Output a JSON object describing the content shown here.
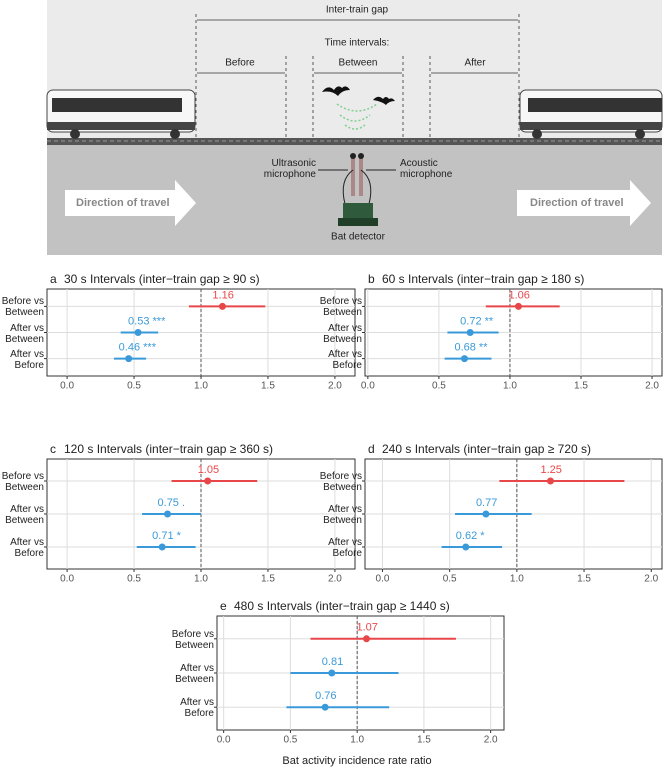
{
  "diagram": {
    "gap_label": "Inter-train gap",
    "intervals_label": "Time intervals:",
    "before": "Before",
    "between": "Between",
    "after": "After",
    "ultrasonic": "Ultrasonic microphone",
    "acoustic": "Acoustic microphone",
    "detector": "Bat detector",
    "direction_left": "Direction of travel",
    "direction_right": "Direction of travel"
  },
  "x_label": "Bat activity incidence rate ratio",
  "chart_data": [
    {
      "type": "forest",
      "panel": "a",
      "title": "30 s Intervals (inter−train gap ≥ 90 s)",
      "categories": [
        "Before vs Between",
        "After vs Between",
        "After vs Before"
      ],
      "values": [
        1.16,
        0.53,
        0.46
      ],
      "lower": [
        0.91,
        0.4,
        0.35
      ],
      "upper": [
        1.48,
        0.68,
        0.59
      ],
      "value_labels": [
        "1.16",
        "0.53 ***",
        "0.46 ***"
      ],
      "colors": [
        "#e8474a",
        "#3a9ad9",
        "#3a9ad9"
      ],
      "refline": 1,
      "grid": true,
      "xlim": [
        -0.15,
        2.15
      ],
      "xticks": [
        {
          "value": 0,
          "label": "0.0"
        },
        {
          "value": 0.5,
          "label": "0.5"
        },
        {
          "value": 1,
          "label": "1.0"
        },
        {
          "value": 1.5,
          "label": "1.5"
        },
        {
          "value": 2,
          "label": "2.0"
        }
      ]
    },
    {
      "type": "forest",
      "panel": "b",
      "title": "60 s Intervals (inter−train gap ≥ 180 s)",
      "categories": [
        "Before vs Between",
        "After vs Between",
        "After vs Before"
      ],
      "values": [
        1.06,
        0.72,
        0.68
      ],
      "lower": [
        0.83,
        0.56,
        0.54
      ],
      "upper": [
        1.35,
        0.92,
        0.87
      ],
      "value_labels": [
        "1.06",
        "0.72 **",
        "0.68 **"
      ],
      "colors": [
        "#e8474a",
        "#3a9ad9",
        "#3a9ad9"
      ],
      "refline": 1,
      "grid": true,
      "xlim": [
        -0.02,
        2.07
      ],
      "xticks": [
        {
          "value": 0,
          "label": "0.0"
        },
        {
          "value": 0.5,
          "label": "0.5"
        },
        {
          "value": 1,
          "label": "1.0"
        },
        {
          "value": 1.5,
          "label": "1.5"
        },
        {
          "value": 2,
          "label": "2.0"
        }
      ]
    },
    {
      "type": "forest",
      "panel": "c",
      "title": "120 s Intervals (inter−train gap ≥ 360 s)",
      "categories": [
        "Before vs Between",
        "After vs Between",
        "After vs Before"
      ],
      "values": [
        1.05,
        0.75,
        0.71
      ],
      "lower": [
        0.78,
        0.56,
        0.52
      ],
      "upper": [
        1.42,
        1.0,
        0.96
      ],
      "value_labels": [
        "1.05",
        "0.75 .",
        "0.71 *"
      ],
      "colors": [
        "#e8474a",
        "#3a9ad9",
        "#3a9ad9"
      ],
      "refline": 1,
      "grid": true,
      "xlim": [
        -0.15,
        2.15
      ],
      "xticks": [
        {
          "value": 0,
          "label": "0.0"
        },
        {
          "value": 0.5,
          "label": "0.5"
        },
        {
          "value": 1,
          "label": "1.0"
        },
        {
          "value": 1.5,
          "label": "1.5"
        },
        {
          "value": 2,
          "label": "2.0"
        }
      ]
    },
    {
      "type": "forest",
      "panel": "d",
      "title": "240 s Intervals (inter−train gap ≥ 720 s)",
      "categories": [
        "Before vs Between",
        "After vs Between",
        "After vs Before"
      ],
      "values": [
        1.25,
        0.77,
        0.62
      ],
      "lower": [
        0.87,
        0.54,
        0.44
      ],
      "upper": [
        1.8,
        1.11,
        0.89
      ],
      "value_labels": [
        "1.25",
        "0.77",
        "0.62 *"
      ],
      "colors": [
        "#e8474a",
        "#3a9ad9",
        "#3a9ad9"
      ],
      "refline": 1,
      "grid": true,
      "xlim": [
        -0.13,
        2.08
      ],
      "xticks": [
        {
          "value": 0,
          "label": "0.0"
        },
        {
          "value": 0.5,
          "label": "0.5"
        },
        {
          "value": 1,
          "label": "1.0"
        },
        {
          "value": 1.5,
          "label": "1.5"
        },
        {
          "value": 2,
          "label": "2.0"
        }
      ]
    },
    {
      "type": "forest",
      "panel": "e",
      "title": "480 s Intervals (inter−train gap ≥ 1440 s)",
      "categories": [
        "Before vs Between",
        "After vs Between",
        "After vs Before"
      ],
      "values": [
        1.07,
        0.81,
        0.76
      ],
      "lower": [
        0.65,
        0.5,
        0.47
      ],
      "upper": [
        1.74,
        1.31,
        1.24
      ],
      "value_labels": [
        "1.07",
        "0.81",
        "0.76"
      ],
      "colors": [
        "#e8474a",
        "#3a9ad9",
        "#3a9ad9"
      ],
      "refline": 1,
      "grid": true,
      "xlim": [
        -0.05,
        2.1
      ],
      "xticks": [
        {
          "value": 0,
          "label": "0.0"
        },
        {
          "value": 0.5,
          "label": "0.5"
        },
        {
          "value": 1,
          "label": "1.0"
        },
        {
          "value": 1.5,
          "label": "1.5"
        },
        {
          "value": 2,
          "label": "2.0"
        }
      ]
    }
  ]
}
